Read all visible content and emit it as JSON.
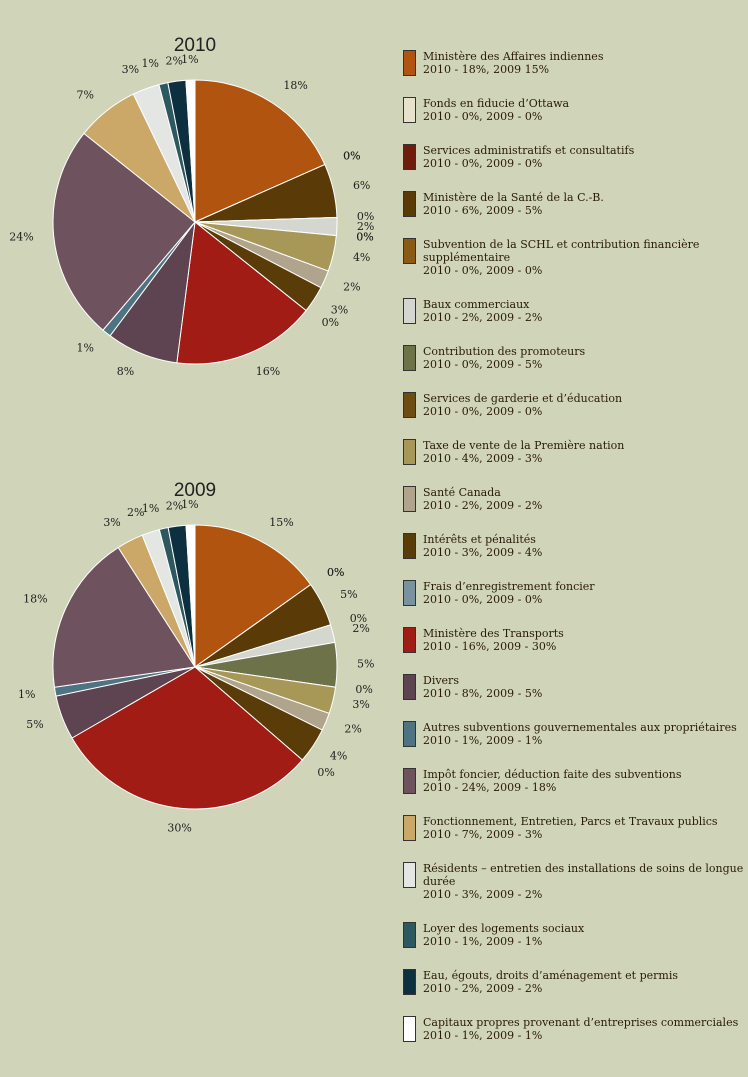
{
  "chart_data": [
    {
      "type": "pie",
      "title": "2010",
      "categories": [
        "Ministère des Affaires indiennes",
        "Fonds en fiducie d’Ottawa",
        "Services administratifs et consultatifs",
        "Ministère de la Santé de la C.-B.",
        "Subvention de la SCHL et contribution financière supplémentaire",
        "Baux commerciaux",
        "Contribution des promoteurs",
        "Services de garderie et d’éducation",
        "Taxe de vente de la Première nation",
        "Santé Canada",
        "Intérêts et pénalités",
        "Frais d’enregistrement foncier",
        "Ministère des Transports",
        "Divers",
        "Autres subventions gouvernementales aux propriétaires",
        "Impôt foncier, déduction faite des subventions",
        "Fonctionnement, Entretien, Parcs et Travaux publics",
        "Résidents – entretien des installations de soins de longue durée",
        "Loyer des logements sociaux",
        "Eau, égouts, droits d’aménagement et permis",
        "Capitaux propres provenant d’entreprises commerciales"
      ],
      "values": [
        18,
        0,
        0,
        6,
        0,
        2,
        0,
        0,
        4,
        2,
        3,
        0,
        16,
        8,
        1,
        24,
        7,
        3,
        1,
        2,
        1
      ],
      "value_labels": [
        "18%",
        "0%",
        "0%",
        "6%",
        "0%",
        "2%",
        "0%",
        "0%",
        "4%",
        "2%",
        "3%",
        "0%",
        "16%",
        "8%",
        "1%",
        "24%",
        "7%",
        "3%",
        "1%",
        "2%",
        "1%"
      ],
      "colors": [
        "#b0540f",
        "#e8e2cc",
        "#6e1c0c",
        "#5a3a06",
        "#8b5a14",
        "#d4d6d0",
        "#6e7248",
        "#6d4d12",
        "#a89858",
        "#b0a48c",
        "#5a3c08",
        "#7892a0",
        "#a01c14",
        "#5e4450",
        "#4e7484",
        "#6e525e",
        "#cca868",
        "#e4e6e4",
        "#2e5860",
        "#0c3040",
        "#ffffff"
      ]
    },
    {
      "type": "pie",
      "title": "2009",
      "categories": [
        "Ministère des Affaires indiennes",
        "Fonds en fiducie d’Ottawa",
        "Services administratifs et consultatifs",
        "Ministère de la Santé de la C.-B.",
        "Subvention de la SCHL et contribution financière supplémentaire",
        "Baux commerciaux",
        "Contribution des promoteurs",
        "Services de garderie et d’éducation",
        "Taxe de vente de la Première nation",
        "Santé Canada",
        "Intérêts et pénalités",
        "Frais d’enregistrement foncier",
        "Ministère des Transports",
        "Divers",
        "Autres subventions gouvernementales aux propriétaires",
        "Impôt foncier, déduction faite des subventions",
        "Fonctionnement, Entretien, Parcs et Travaux publics",
        "Résidents – entretien des installations de soins de longue durée",
        "Loyer des logements sociaux",
        "Eau, égouts, droits d’aménagement et permis",
        "Capitaux propres provenant d’entreprises commerciales"
      ],
      "values": [
        15,
        0,
        0,
        5,
        0,
        2,
        5,
        0,
        3,
        2,
        4,
        0,
        30,
        5,
        1,
        18,
        3,
        2,
        1,
        2,
        1
      ],
      "value_labels": [
        "15%",
        "0%",
        "0%",
        "5%",
        "0%",
        "2%",
        "5%",
        "0%",
        "3%",
        "2%",
        "4%",
        "0%",
        "30%",
        "5%",
        "1%",
        "18%",
        "3%",
        "2%",
        "1%",
        "2%",
        "1%"
      ],
      "colors": [
        "#b0540f",
        "#e8e2cc",
        "#6e1c0c",
        "#5a3a06",
        "#8b5a14",
        "#d4d6d0",
        "#6e7248",
        "#6d4d12",
        "#a89858",
        "#b0a48c",
        "#5a3c08",
        "#7892a0",
        "#a01c14",
        "#5e4450",
        "#4e7484",
        "#6e525e",
        "#cca868",
        "#e4e6e4",
        "#2e5860",
        "#0c3040",
        "#ffffff"
      ]
    }
  ],
  "legend_details": [
    "2010 - 18%, 2009 15%",
    "2010 - 0%, 2009 - 0%",
    "2010 - 0%, 2009 - 0%",
    "2010 - 6%, 2009 - 5%",
    "2010 - 0%, 2009 - 0%",
    "2010 - 2%, 2009 - 2%",
    "2010 - 0%, 2009 - 5%",
    "2010 - 0%, 2009 - 0%",
    "2010 - 4%, 2009 - 3%",
    "2010 - 2%, 2009 - 2%",
    "2010 - 3%, 2009 - 4%",
    "2010 - 0%, 2009 - 0%",
    "2010 - 16%, 2009 - 30%",
    "2010 - 8%, 2009 - 5%",
    "2010 - 1%, 2009 - 1%",
    "2010 - 24%, 2009 - 18%",
    "2010 - 7%, 2009 - 3%",
    "2010 - 3%, 2009 - 2%",
    "2010 - 1%, 2009 - 1%",
    "2010 - 2%, 2009 - 2%",
    "2010 - 1%, 2009 - 1%"
  ]
}
